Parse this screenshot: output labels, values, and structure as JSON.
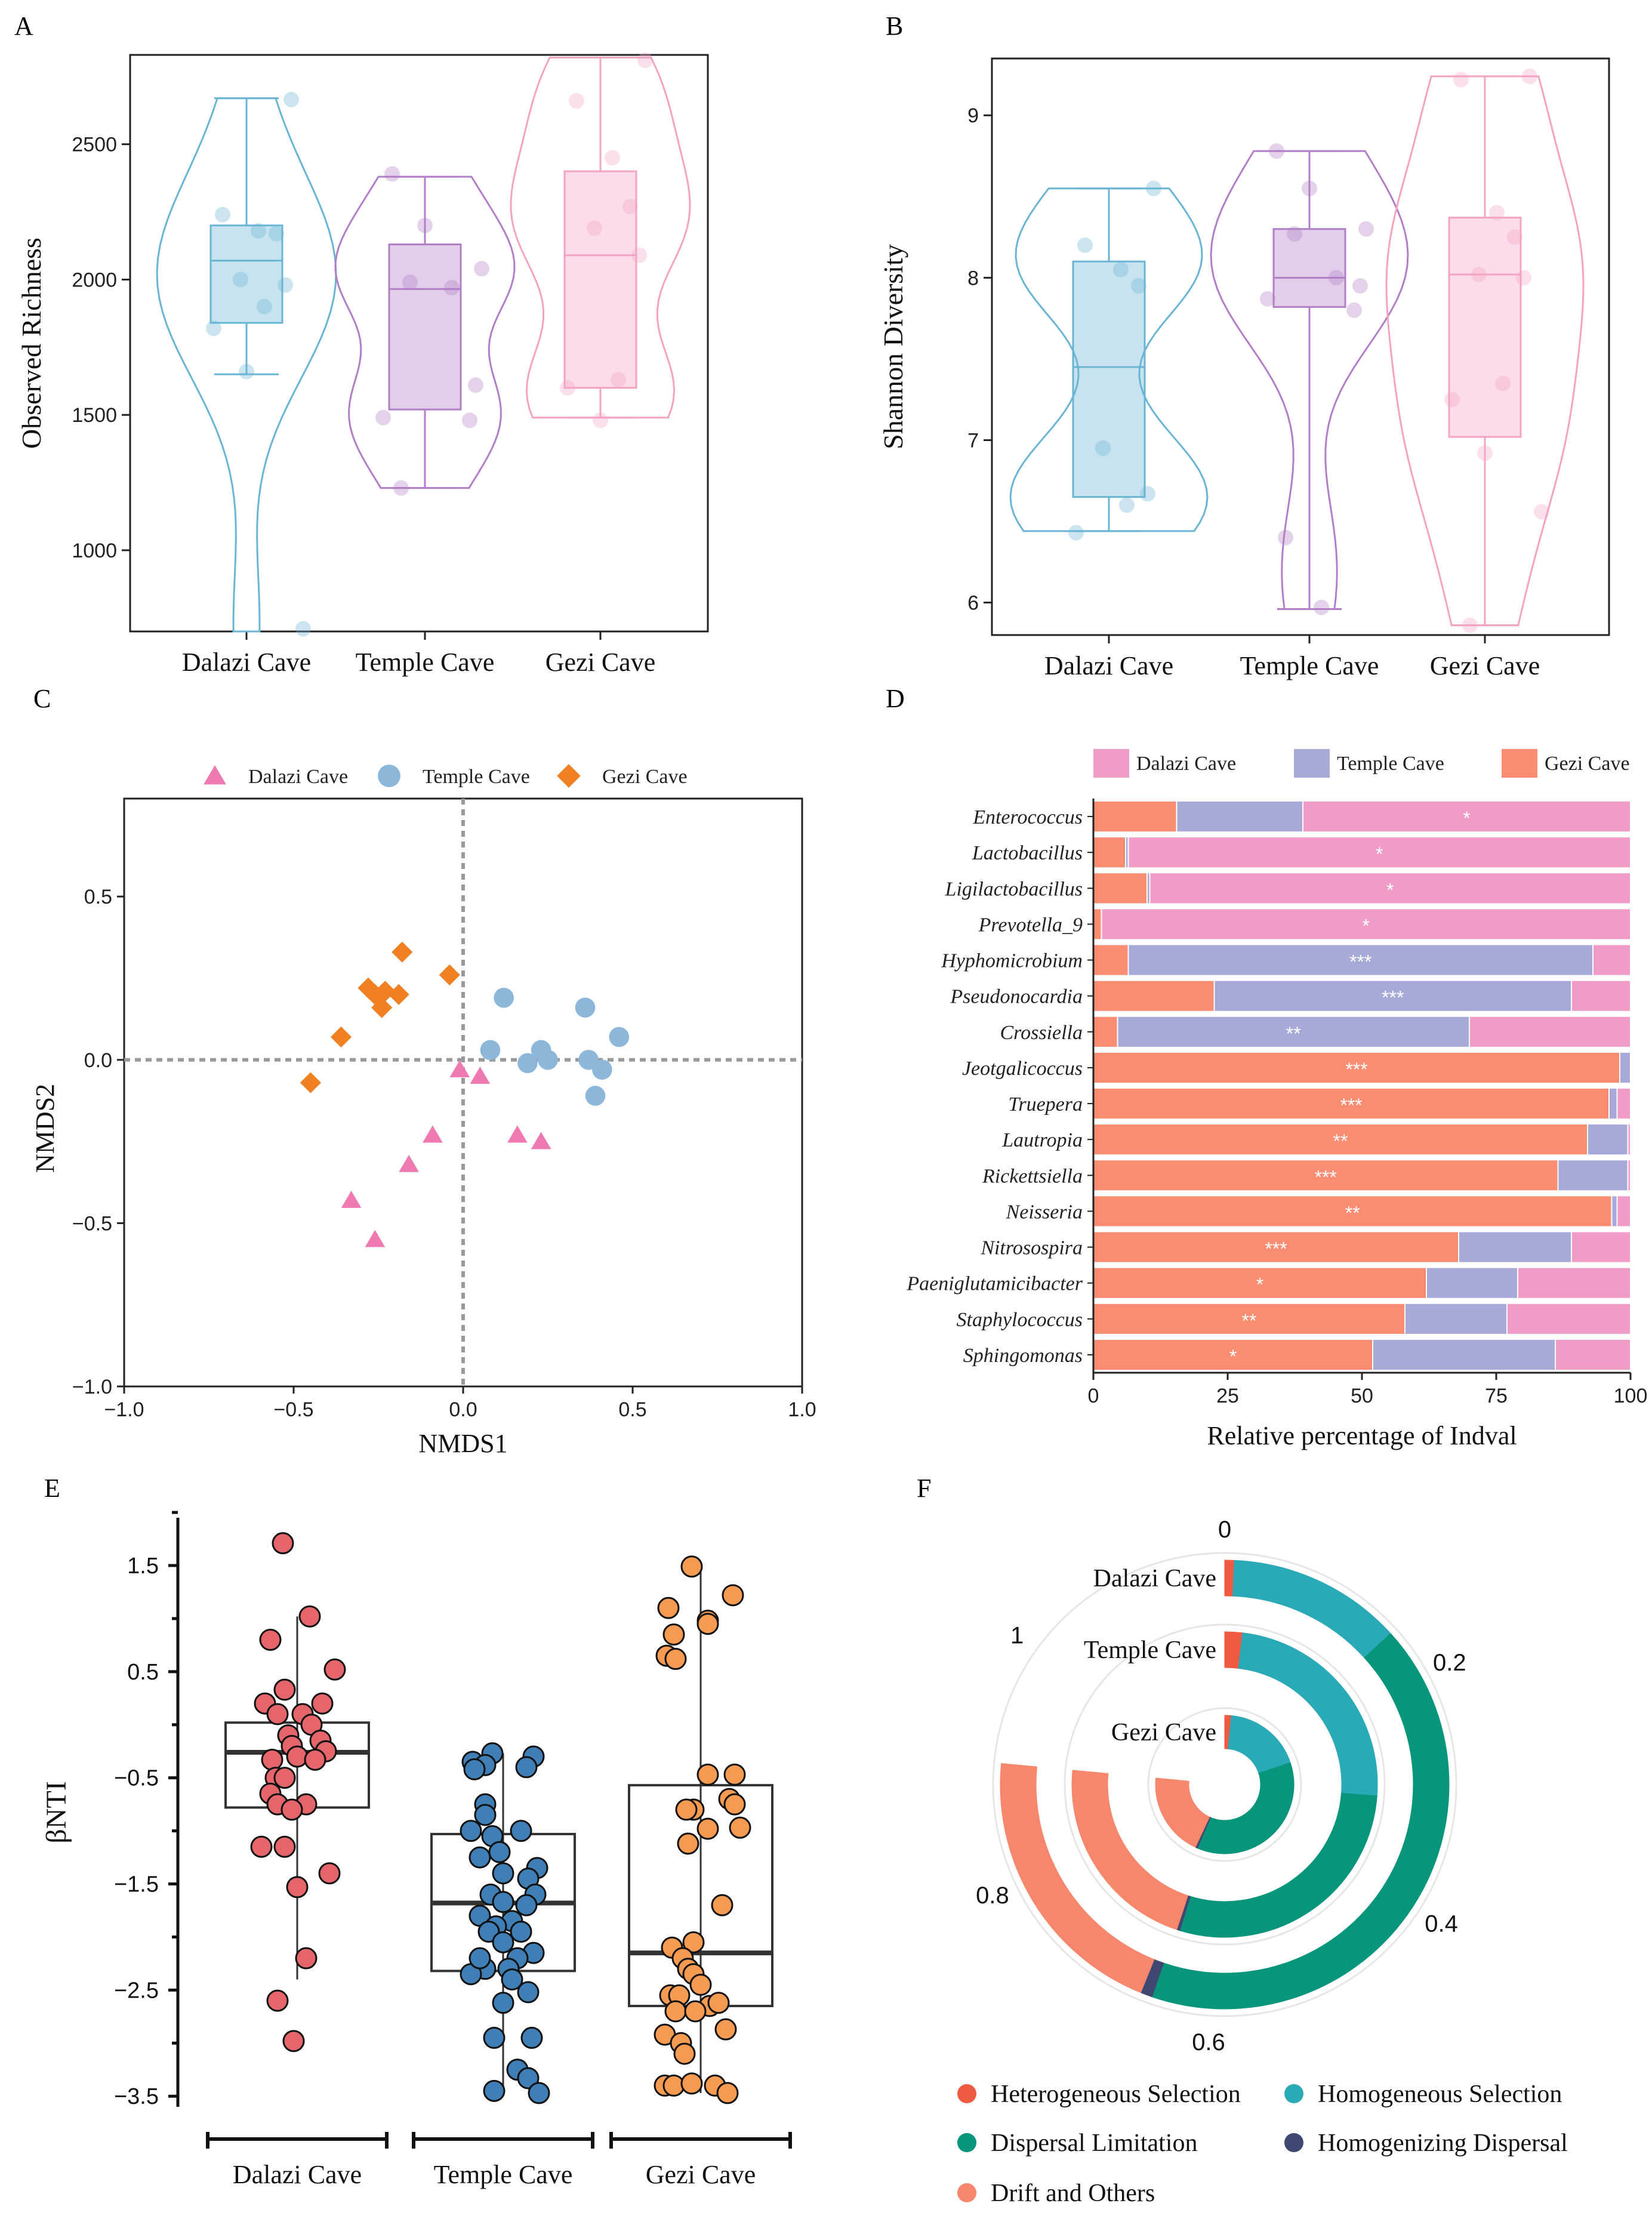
{
  "colors": {
    "dalazi_light": "#6ab5d4",
    "temple_light": "#b27ec7",
    "gezi_light": "#f4a3c2",
    "dalazi_pink": "#ef79b1",
    "temple_blue": "#8db6db",
    "gezi_orange": "#ef8122",
    "indval_dalazi": "#f19bc7",
    "indval_temple": "#a7a9d9",
    "indval_gezi": "#f98c71",
    "e_dalazi": "#e4666a",
    "e_temple": "#3f7fb5",
    "e_gezi": "#f59a51",
    "f_hetero": "#f05a40",
    "f_homo": "#2aa9b6",
    "f_disp": "#07957b",
    "f_homog": "#3f4870",
    "f_drift": "#f6866c"
  },
  "chart_data": [
    {
      "panel": "A",
      "type": "violin+box",
      "ylabel": "Observed Richness",
      "ylim": [
        700,
        2830
      ],
      "yticks": [
        1000,
        1500,
        2000,
        2500
      ],
      "categories": [
        "Dalazi Cave",
        "Temple Cave",
        "Gezi Cave"
      ],
      "groups": [
        {
          "name": "Dalazi Cave",
          "box": {
            "q1": 1840,
            "median": 2070,
            "q3": 2200,
            "min": 1650,
            "max": 2670
          },
          "violin_range": [
            700,
            2670
          ],
          "points": [
            2665,
            2240,
            2180,
            2170,
            2000,
            1980,
            1900,
            1820,
            1660,
            710
          ]
        },
        {
          "name": "Temple Cave",
          "box": {
            "q1": 1520,
            "median": 1965,
            "q3": 2130,
            "min": 1230,
            "max": 2380
          },
          "violin_range": [
            1230,
            2380
          ],
          "points": [
            2390,
            2200,
            2040,
            1990,
            1970,
            1610,
            1490,
            1480,
            1230
          ]
        },
        {
          "name": "Gezi Cave",
          "box": {
            "q1": 1600,
            "median": 2090,
            "q3": 2400,
            "min": 1490,
            "max": 2820
          },
          "violin_range": [
            1490,
            2820
          ],
          "points": [
            2810,
            2660,
            2450,
            2270,
            2190,
            2090,
            1630,
            1600,
            1480
          ]
        }
      ]
    },
    {
      "panel": "B",
      "type": "violin+box",
      "ylabel": "Shannon Diversity",
      "ylim": [
        5.8,
        9.35
      ],
      "yticks": [
        6,
        7,
        8,
        9
      ],
      "categories": [
        "Dalazi Cave",
        "Temple Cave",
        "Gezi Cave"
      ],
      "groups": [
        {
          "name": "Dalazi Cave",
          "box": {
            "q1": 6.65,
            "median": 7.45,
            "q3": 8.1,
            "min": 6.44,
            "max": 8.55
          },
          "violin_range": [
            6.44,
            8.55
          ],
          "points": [
            8.55,
            8.2,
            8.05,
            7.95,
            6.95,
            6.67,
            6.6,
            6.43
          ]
        },
        {
          "name": "Temple Cave",
          "box": {
            "q1": 7.82,
            "median": 8.0,
            "q3": 8.3,
            "min": 5.96,
            "max": 8.78
          },
          "violin_range": [
            5.96,
            8.78
          ],
          "points": [
            8.78,
            8.55,
            8.3,
            8.27,
            8.0,
            7.95,
            7.87,
            7.8,
            6.4,
            5.97
          ]
        },
        {
          "name": "Gezi Cave",
          "box": {
            "q1": 7.02,
            "median": 8.02,
            "q3": 8.37,
            "min": 5.86,
            "max": 9.24
          },
          "violin_range": [
            5.86,
            9.24
          ],
          "points": [
            9.24,
            9.22,
            8.4,
            8.25,
            8.02,
            8.0,
            7.35,
            7.25,
            6.92,
            6.56,
            5.86
          ]
        }
      ]
    },
    {
      "panel": "C",
      "type": "scatter",
      "xlabel": "NMDS1",
      "ylabel": "NMDS2",
      "xlim": [
        -1.0,
        1.0
      ],
      "ylim": [
        -1.0,
        0.8
      ],
      "xticks": [
        -1.0,
        -0.5,
        0.0,
        0.5,
        1.0
      ],
      "yticks": [
        -1.0,
        -0.5,
        0.0,
        0.5
      ],
      "legend": [
        "Dalazi Cave",
        "Temple Cave",
        "Gezi Cave"
      ],
      "series": [
        {
          "name": "Dalazi Cave",
          "marker": "triangle",
          "points": [
            [
              -0.33,
              -0.43
            ],
            [
              -0.26,
              -0.55
            ],
            [
              -0.16,
              -0.32
            ],
            [
              -0.09,
              -0.23
            ],
            [
              -0.01,
              -0.03
            ],
            [
              0.05,
              -0.05
            ],
            [
              0.16,
              -0.23
            ],
            [
              0.23,
              -0.25
            ]
          ]
        },
        {
          "name": "Temple Cave",
          "marker": "circle",
          "points": [
            [
              0.08,
              0.03
            ],
            [
              0.12,
              0.19
            ],
            [
              0.19,
              -0.01
            ],
            [
              0.23,
              0.03
            ],
            [
              0.25,
              0.0
            ],
            [
              0.36,
              0.16
            ],
            [
              0.37,
              0.0
            ],
            [
              0.39,
              -0.11
            ],
            [
              0.41,
              -0.03
            ],
            [
              0.46,
              0.07
            ]
          ]
        },
        {
          "name": "Gezi Cave",
          "marker": "diamond",
          "points": [
            [
              -0.45,
              -0.07
            ],
            [
              -0.36,
              0.07
            ],
            [
              -0.28,
              0.22
            ],
            [
              -0.26,
              0.2
            ],
            [
              -0.24,
              0.16
            ],
            [
              -0.23,
              0.21
            ],
            [
              -0.19,
              0.2
            ],
            [
              -0.18,
              0.33
            ],
            [
              -0.04,
              0.26
            ]
          ]
        }
      ]
    },
    {
      "panel": "D",
      "type": "bar",
      "orientation": "horizontal-stacked",
      "xlabel": "Relative percentage of Indval",
      "xlim": [
        0,
        100
      ],
      "xticks": [
        0,
        25,
        50,
        75,
        100
      ],
      "legend": [
        "Dalazi Cave",
        "Temple Cave",
        "Gezi Cave"
      ],
      "categories": [
        "Enterococcus",
        "Lactobacillus",
        "Ligilactobacillus",
        "Prevotella_9",
        "Hyphomicrobium",
        "Pseudonocardia",
        "Crossiella",
        "Jeotgalicoccus",
        "Truepera",
        "Lautropia",
        "Rickettsiella",
        "Neisseria",
        "Nitrosospira",
        "Paeniglutamicibacter",
        "Staphylococcus",
        "Sphingomonas"
      ],
      "series": [
        {
          "name": "Gezi Cave",
          "values": [
            15.5,
            6,
            10,
            1.5,
            6.5,
            22.5,
            4.5,
            98,
            96,
            92,
            86.5,
            96.5,
            68,
            62,
            58,
            52
          ]
        },
        {
          "name": "Temple Cave",
          "values": [
            23.5,
            0.5,
            0.5,
            0,
            86.5,
            66.5,
            65.5,
            2,
            1.5,
            7.5,
            13,
            1,
            21,
            17,
            19,
            34
          ]
        },
        {
          "name": "Dalazi Cave",
          "values": [
            61,
            93.5,
            89.5,
            98.5,
            7,
            11,
            30,
            0,
            2.5,
            0.5,
            0.5,
            2.5,
            11,
            21,
            23,
            14
          ]
        }
      ],
      "significance": [
        "*",
        "*",
        "*",
        "*",
        "***",
        "***",
        "**",
        "***",
        "***",
        "**",
        "***",
        "**",
        "***",
        "*",
        "**",
        "*"
      ]
    },
    {
      "panel": "E",
      "type": "scatter",
      "subtype": "box+jitter",
      "ylabel": "βNTI",
      "ylim": [
        -3.6,
        1.95
      ],
      "yticks": [
        1.5,
        0.5,
        -0.5,
        -1.5,
        -2.5,
        -3.5
      ],
      "categories": [
        "Dalazi Cave",
        "Temple Cave",
        "Gezi Cave"
      ],
      "groups": [
        {
          "name": "Dalazi Cave",
          "box": {
            "q1": -0.78,
            "median": -0.26,
            "q3": 0.02,
            "min": -2.4,
            "max": 1.02
          },
          "points": [
            [
              -0.08,
              1.71
            ],
            [
              0.07,
              1.02
            ],
            [
              -0.15,
              0.8
            ],
            [
              0.21,
              0.52
            ],
            [
              -0.07,
              0.33
            ],
            [
              -0.18,
              0.2
            ],
            [
              0.14,
              0.2
            ],
            [
              -0.11,
              0.1
            ],
            [
              0.03,
              0.1
            ],
            [
              0.08,
              0.0
            ],
            [
              -0.05,
              -0.1
            ],
            [
              0.13,
              -0.15
            ],
            [
              -0.03,
              -0.2
            ],
            [
              0.16,
              -0.25
            ],
            [
              0.0,
              -0.3
            ],
            [
              -0.14,
              -0.33
            ],
            [
              0.1,
              -0.33
            ],
            [
              -0.12,
              -0.5
            ],
            [
              -0.07,
              -0.5
            ],
            [
              -0.15,
              -0.65
            ],
            [
              -0.11,
              -0.75
            ],
            [
              0.05,
              -0.75
            ],
            [
              -0.03,
              -0.8
            ],
            [
              -0.2,
              -1.15
            ],
            [
              -0.07,
              -1.15
            ],
            [
              0.18,
              -1.4
            ],
            [
              0.0,
              -1.53
            ],
            [
              0.05,
              -2.2
            ],
            [
              -0.11,
              -2.6
            ],
            [
              -0.02,
              -2.98
            ]
          ]
        },
        {
          "name": "Temple Cave",
          "box": {
            "q1": -2.32,
            "median": -1.68,
            "q3": -1.03,
            "min": -3.47,
            "max": -0.27
          },
          "points": [
            [
              -0.06,
              -0.27
            ],
            [
              0.17,
              -0.3
            ],
            [
              -0.17,
              -0.35
            ],
            [
              -0.1,
              -0.38
            ],
            [
              0.13,
              -0.4
            ],
            [
              -0.16,
              -0.42
            ],
            [
              -0.1,
              -0.75
            ],
            [
              -0.1,
              -0.85
            ],
            [
              -0.18,
              -1.0
            ],
            [
              -0.06,
              -1.05
            ],
            [
              0.1,
              -1.0
            ],
            [
              -0.02,
              -1.2
            ],
            [
              -0.13,
              -1.25
            ],
            [
              0.19,
              -1.35
            ],
            [
              0.0,
              -1.4
            ],
            [
              0.14,
              -1.45
            ],
            [
              -0.07,
              -1.6
            ],
            [
              0.18,
              -1.6
            ],
            [
              0.0,
              -1.67
            ],
            [
              0.13,
              -1.7
            ],
            [
              -0.13,
              -1.8
            ],
            [
              0.05,
              -1.85
            ],
            [
              -0.04,
              -1.9
            ],
            [
              0.1,
              -1.95
            ],
            [
              -0.08,
              -1.95
            ],
            [
              0.0,
              -2.05
            ],
            [
              0.17,
              -2.15
            ],
            [
              0.08,
              -2.2
            ],
            [
              -0.1,
              -2.3
            ],
            [
              0.03,
              -2.3
            ],
            [
              -0.18,
              -2.35
            ],
            [
              0.05,
              -2.4
            ],
            [
              0.14,
              -2.52
            ],
            [
              0.0,
              -2.62
            ],
            [
              -0.13,
              -2.2
            ],
            [
              0.16,
              -2.95
            ],
            [
              -0.05,
              -2.95
            ],
            [
              0.08,
              -3.25
            ],
            [
              0.14,
              -3.33
            ],
            [
              -0.05,
              -3.45
            ],
            [
              0.2,
              -3.47
            ]
          ]
        },
        {
          "name": "Gezi Cave",
          "box": {
            "q1": -2.65,
            "median": -2.15,
            "q3": -0.57,
            "min": -3.47,
            "max": 1.5
          },
          "points": [
            [
              -0.05,
              1.49
            ],
            [
              0.18,
              1.22
            ],
            [
              -0.18,
              1.1
            ],
            [
              0.04,
              0.98
            ],
            [
              -0.15,
              0.85
            ],
            [
              0.04,
              0.95
            ],
            [
              -0.19,
              0.65
            ],
            [
              -0.14,
              0.62
            ],
            [
              0.04,
              -0.47
            ],
            [
              0.19,
              -0.47
            ],
            [
              0.16,
              -0.7
            ],
            [
              0.19,
              -0.75
            ],
            [
              -0.04,
              -0.8
            ],
            [
              -0.08,
              -0.8
            ],
            [
              0.04,
              -0.98
            ],
            [
              0.22,
              -0.97
            ],
            [
              -0.07,
              -1.12
            ],
            [
              0.12,
              -1.7
            ],
            [
              -0.04,
              -2.05
            ],
            [
              -0.16,
              -2.1
            ],
            [
              -0.1,
              -2.2
            ],
            [
              -0.07,
              -2.3
            ],
            [
              -0.04,
              -2.35
            ],
            [
              0.0,
              -2.45
            ],
            [
              -0.17,
              -2.55
            ],
            [
              -0.12,
              -2.55
            ],
            [
              0.05,
              -2.65
            ],
            [
              -0.14,
              -2.7
            ],
            [
              -0.03,
              -2.7
            ],
            [
              0.1,
              -2.62
            ],
            [
              0.14,
              -2.87
            ],
            [
              -0.2,
              -2.92
            ],
            [
              -0.11,
              -3.0
            ],
            [
              -0.09,
              -3.1
            ],
            [
              -0.2,
              -3.4
            ],
            [
              -0.15,
              -3.4
            ],
            [
              0.08,
              -3.4
            ],
            [
              -0.05,
              -3.38
            ],
            [
              0.15,
              -3.47
            ]
          ]
        }
      ]
    },
    {
      "panel": "F",
      "type": "pie",
      "subtype": "radial-stacked",
      "ticks": [
        "0",
        "0.2",
        "0.4",
        "0.6",
        "0.8",
        "1"
      ],
      "rings": [
        "Dalazi Cave",
        "Temple Cave",
        "Gezi Cave"
      ],
      "legend": [
        "Heterogeneous Selection",
        "Homogeneous Selection",
        "Dispersal Limitation",
        "Homogenizing Dispersal",
        "Drift and Others"
      ],
      "series": [
        {
          "name": "Dalazi Cave",
          "values": [
            0.008,
            0.148,
            0.494,
            0.01,
            0.24
          ]
        },
        {
          "name": "Temple Cave",
          "values": [
            0.022,
            0.286,
            0.336,
            0.004,
            0.252
          ]
        },
        {
          "name": "Gezi Cave",
          "values": [
            0.018,
            0.216,
            0.43,
            0.006,
            0.23
          ]
        }
      ]
    }
  ]
}
